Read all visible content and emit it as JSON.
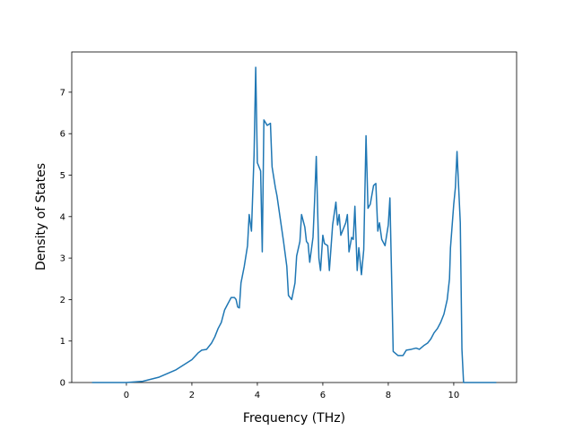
{
  "chart_data": {
    "type": "line",
    "xlabel": "Frequency (THz)",
    "ylabel": "Density of States",
    "xlim": [
      -1.67,
      11.92
    ],
    "ylim": [
      0,
      7.97
    ],
    "xticks": [
      0,
      2,
      4,
      6,
      8,
      10
    ],
    "yticks": [
      0,
      1,
      2,
      3,
      4,
      5,
      6,
      7
    ],
    "series": [
      {
        "color": "#1f77b4",
        "x": [
          -1.05,
          0,
          0.5,
          1,
          1.5,
          2,
          2.2,
          2.3,
          2.45,
          2.6,
          2.7,
          2.8,
          2.9,
          3.0,
          3.1,
          3.2,
          3.3,
          3.35,
          3.4,
          3.45,
          3.5,
          3.6,
          3.7,
          3.75,
          3.82,
          3.9,
          3.95,
          4.0,
          4.1,
          4.15,
          4.2,
          4.3,
          4.4,
          4.45,
          4.55,
          4.6,
          4.7,
          4.8,
          4.9,
          4.95,
          5.05,
          5.15,
          5.2,
          5.3,
          5.35,
          5.45,
          5.5,
          5.55,
          5.6,
          5.7,
          5.75,
          5.8,
          5.88,
          5.93,
          6.0,
          6.05,
          6.15,
          6.2,
          6.3,
          6.4,
          6.45,
          6.5,
          6.55,
          6.65,
          6.7,
          6.75,
          6.8,
          6.88,
          6.93,
          6.98,
          7.05,
          7.1,
          7.18,
          7.25,
          7.32,
          7.38,
          7.45,
          7.55,
          7.62,
          7.68,
          7.73,
          7.8,
          7.9,
          8.0,
          8.05,
          8.15,
          8.3,
          8.45,
          8.55,
          8.7,
          8.85,
          8.95,
          9.1,
          9.2,
          9.3,
          9.4,
          9.5,
          9.6,
          9.7,
          9.8,
          9.87,
          9.9,
          10.0,
          10.05,
          10.1,
          10.15,
          10.2,
          10.25,
          10.3,
          11.3
        ],
        "values": [
          0,
          0,
          0.03,
          0.13,
          0.3,
          0.55,
          0.72,
          0.78,
          0.8,
          0.95,
          1.1,
          1.3,
          1.45,
          1.75,
          1.9,
          2.05,
          2.05,
          2.0,
          1.82,
          1.8,
          2.4,
          2.8,
          3.3,
          4.05,
          3.65,
          5.5,
          7.6,
          5.3,
          5.1,
          3.15,
          6.33,
          6.2,
          6.25,
          5.2,
          4.7,
          4.5,
          3.95,
          3.4,
          2.8,
          2.1,
          2.0,
          2.4,
          3.05,
          3.4,
          4.05,
          3.75,
          3.4,
          3.35,
          2.9,
          3.5,
          4.4,
          5.45,
          3.0,
          2.7,
          3.55,
          3.35,
          3.3,
          2.7,
          3.8,
          4.35,
          3.8,
          4.05,
          3.55,
          3.75,
          3.85,
          4.05,
          3.15,
          3.5,
          3.45,
          4.25,
          2.7,
          3.25,
          2.6,
          3.2,
          5.95,
          4.2,
          4.3,
          4.75,
          4.8,
          3.65,
          3.85,
          3.45,
          3.3,
          3.8,
          4.45,
          0.75,
          0.65,
          0.65,
          0.78,
          0.8,
          0.83,
          0.8,
          0.9,
          0.95,
          1.05,
          1.2,
          1.3,
          1.45,
          1.65,
          2.0,
          2.5,
          3.25,
          4.3,
          4.7,
          5.57,
          4.7,
          3.85,
          0.8,
          0,
          0
        ]
      }
    ]
  }
}
